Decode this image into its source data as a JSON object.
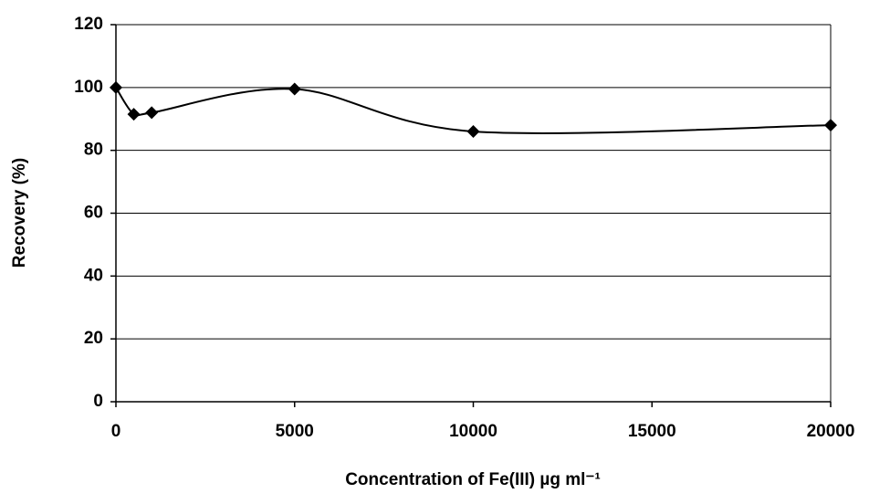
{
  "chart_data": {
    "type": "line",
    "smooth": true,
    "xlabel": "Concentration of Fe(III) µg ml⁻¹",
    "ylabel": "Recovery (%)",
    "x": [
      0,
      500,
      1000,
      5000,
      10000,
      20000
    ],
    "series": [
      {
        "name": "Recovery",
        "color": "#000000",
        "marker": "diamond",
        "values": [
          100,
          91.5,
          92,
          99.5,
          86,
          88
        ]
      }
    ],
    "xlim": [
      0,
      20000
    ],
    "xticks": [
      0,
      5000,
      10000,
      15000,
      20000
    ],
    "ylim": [
      0,
      120
    ],
    "yticks": [
      0,
      20,
      40,
      60,
      80,
      100,
      120
    ],
    "grid": true
  }
}
